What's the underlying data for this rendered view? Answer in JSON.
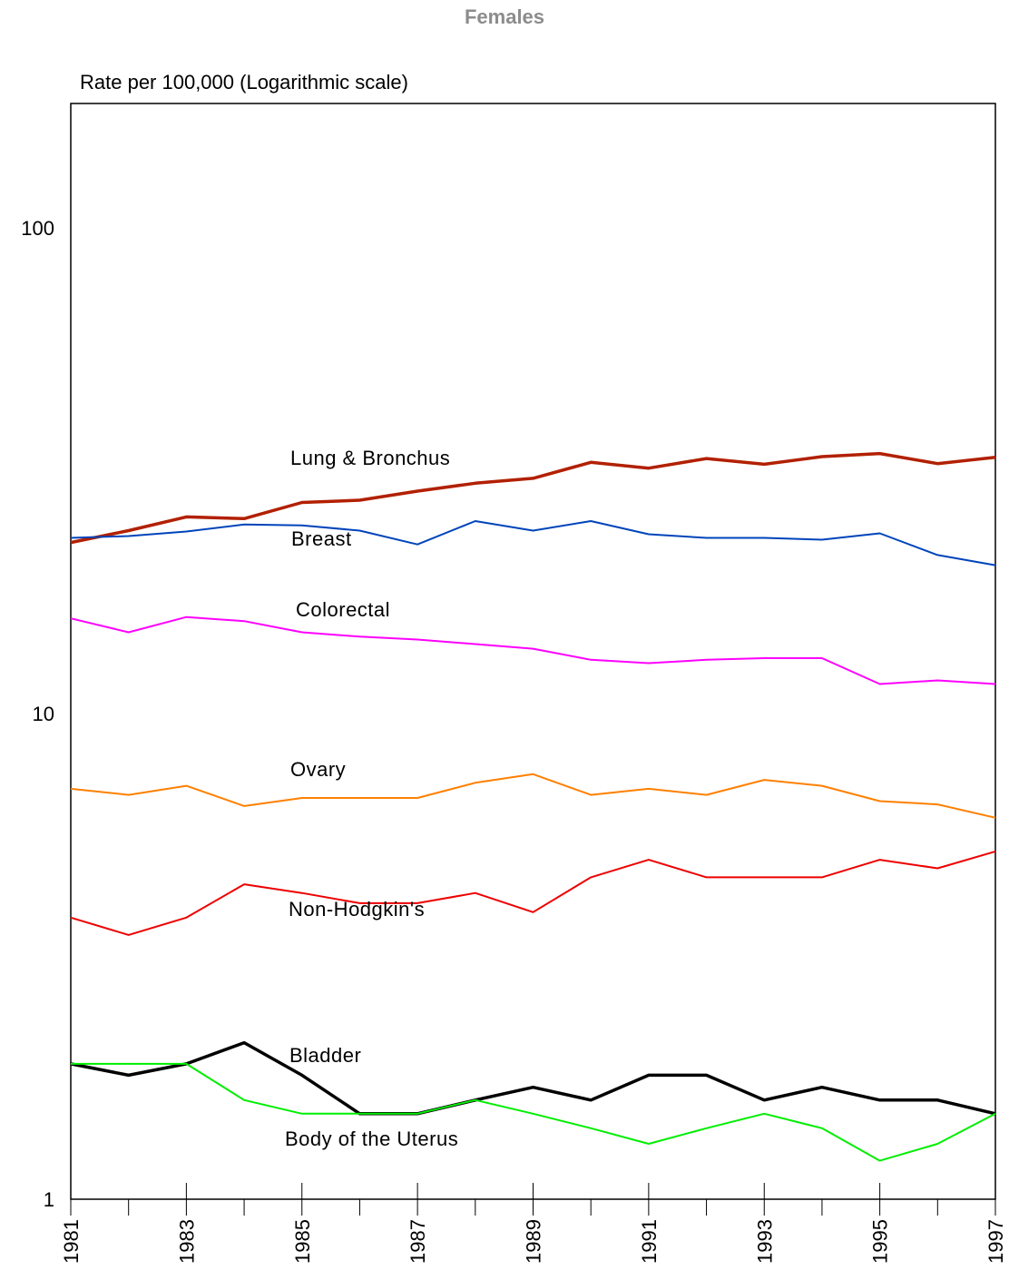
{
  "chart_data": {
    "type": "line",
    "title": "Females",
    "ylabel": "Rate per 100,000 (Logarithmic scale)",
    "xlabel": "",
    "yscale": "log",
    "ylim": [
      1,
      200
    ],
    "yticks": [
      1,
      10,
      100
    ],
    "ytick_labels": [
      "1",
      "10",
      "100"
    ],
    "x": [
      1981,
      1982,
      1983,
      1984,
      1985,
      1986,
      1987,
      1988,
      1989,
      1990,
      1991,
      1992,
      1993,
      1994,
      1995,
      1996,
      1997
    ],
    "xtick_labels": [
      "1981",
      "1983",
      "1985",
      "1987",
      "1989",
      "1991",
      "1993",
      "1995",
      "1997"
    ],
    "grid": false,
    "series": [
      {
        "name": "Lung & Bronchus",
        "color": "#b22000",
        "values": [
          22.5,
          23.8,
          25.4,
          25.2,
          27.2,
          27.5,
          28.7,
          29.8,
          30.5,
          32.9,
          32.0,
          33.5,
          32.6,
          33.8,
          34.3,
          32.7,
          33.7
        ]
      },
      {
        "name": "Breast",
        "color": "#0044bb",
        "values": [
          23.0,
          23.2,
          23.7,
          24.5,
          24.4,
          23.8,
          22.3,
          24.9,
          23.8,
          24.9,
          23.4,
          23.0,
          23.0,
          22.8,
          23.5,
          21.2,
          20.2
        ]
      },
      {
        "name": "Colorectal",
        "color": "#ff00ff",
        "values": [
          15.7,
          14.7,
          15.8,
          15.5,
          14.7,
          14.4,
          14.2,
          13.9,
          13.6,
          12.9,
          12.7,
          12.9,
          13.0,
          13.0,
          11.5,
          11.7,
          11.5
        ]
      },
      {
        "name": "Ovary",
        "color": "#ff8000",
        "values": [
          7.0,
          6.8,
          7.1,
          6.45,
          6.7,
          6.7,
          6.7,
          7.2,
          7.5,
          6.8,
          7.0,
          6.8,
          7.3,
          7.1,
          6.6,
          6.5,
          6.1
        ]
      },
      {
        "name": "Non-Hodgkin's",
        "color": "#ee0000",
        "values": [
          3.8,
          3.5,
          3.8,
          4.45,
          4.27,
          4.07,
          4.07,
          4.27,
          3.9,
          4.6,
          5.0,
          4.6,
          4.6,
          4.6,
          5.0,
          4.8,
          5.2
        ]
      },
      {
        "name": "Bladder",
        "color": "#000000",
        "values": [
          1.9,
          1.8,
          1.9,
          2.1,
          1.8,
          1.5,
          1.5,
          1.6,
          1.7,
          1.6,
          1.8,
          1.8,
          1.6,
          1.7,
          1.6,
          1.6,
          1.5
        ]
      },
      {
        "name": "Body of the Uterus",
        "color": "#00ee00",
        "values": [
          1.9,
          1.9,
          1.9,
          1.6,
          1.5,
          1.5,
          1.5,
          1.6,
          1.5,
          1.4,
          1.3,
          1.4,
          1.5,
          1.4,
          1.2,
          1.3,
          1.5
        ]
      }
    ]
  }
}
